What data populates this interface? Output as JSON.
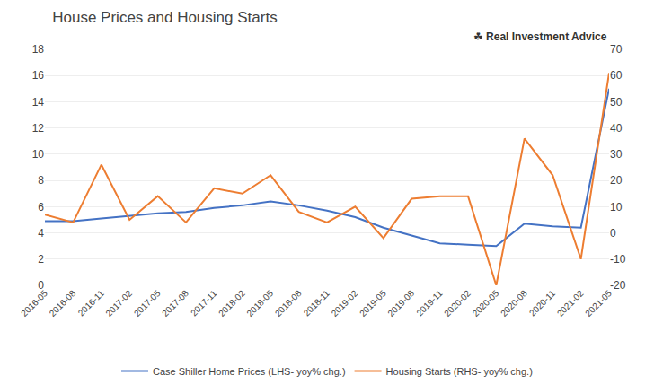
{
  "chart_data": {
    "type": "line",
    "title": "House Prices and Housing Starts",
    "annotations": [
      "☘",
      "Real Investment Advice"
    ],
    "categories": [
      "2016-05",
      "2016-08",
      "2016-11",
      "2017-02",
      "2017-05",
      "2017-08",
      "2017-11",
      "2018-02",
      "2018-05",
      "2018-08",
      "2018-11",
      "2019-02",
      "2019-05",
      "2019-08",
      "2019-11",
      "2020-02",
      "2020-05",
      "2020-08",
      "2020-11",
      "2021-02",
      "2021-05"
    ],
    "series": [
      {
        "name": "Case Shiller Home Prices (LHS- yoy% chg.)",
        "color": "#4472c4",
        "values": [
          4.9,
          4.9,
          5.1,
          5.3,
          5.5,
          5.6,
          5.9,
          6.1,
          6.4,
          6.1,
          5.7,
          5.2,
          4.4,
          3.8,
          3.2,
          3.1,
          3.0,
          4.7,
          4.5,
          4.4,
          15.0
        ]
      },
      {
        "name": "Housing Starts (RHS- yoy% chg.)",
        "color": "#ed7d31",
        "axis": "y2",
        "values": [
          7,
          4,
          26,
          5,
          14,
          4,
          17,
          15,
          22,
          8,
          4,
          10,
          -2,
          13,
          14,
          14,
          -20,
          36,
          22,
          -10,
          61
        ]
      }
    ],
    "ylim": [
      0,
      18
    ],
    "yticks": [
      0,
      2,
      4,
      6,
      8,
      10,
      12,
      14,
      16,
      18
    ],
    "y2lim": [
      -20,
      70
    ],
    "y2ticks": [
      -20,
      -10,
      0,
      10,
      20,
      30,
      40,
      50,
      60,
      70
    ],
    "grid": true,
    "legend": "bottom"
  }
}
